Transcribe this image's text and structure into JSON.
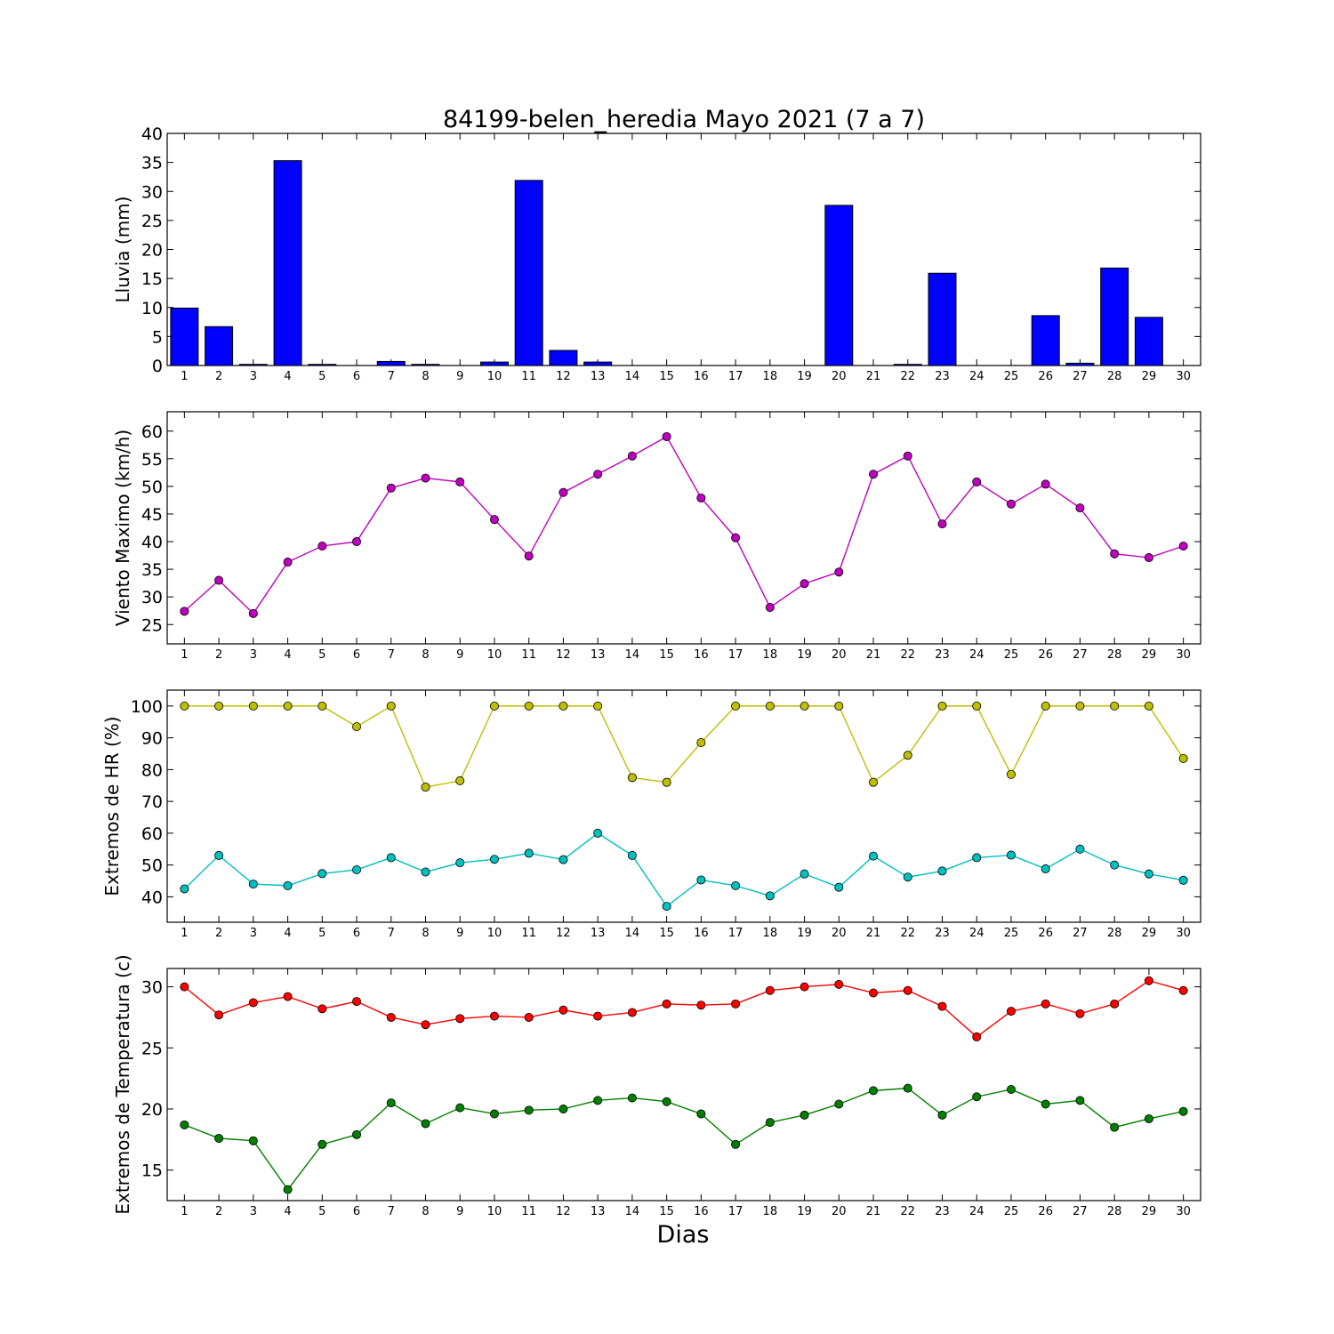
{
  "title": "84199-belen_heredia Mayo 2021  (7 a 7)",
  "xlabel": "Dias",
  "chart_data": [
    {
      "type": "bar",
      "ylabel": "Lluvia (mm)",
      "ylim": [
        0,
        40
      ],
      "yticks": [
        0,
        5,
        10,
        15,
        20,
        25,
        30,
        35,
        40
      ],
      "x": [
        1,
        2,
        3,
        4,
        5,
        6,
        7,
        8,
        9,
        10,
        11,
        12,
        13,
        14,
        15,
        16,
        17,
        18,
        19,
        20,
        21,
        22,
        23,
        24,
        25,
        26,
        27,
        28,
        29,
        30
      ],
      "series": [
        {
          "color": "#0000ff",
          "values": [
            9.9,
            6.7,
            0.2,
            35.3,
            0.2,
            0,
            0.7,
            0.2,
            0,
            0.6,
            31.9,
            2.6,
            0.6,
            0,
            0,
            0,
            0,
            0,
            0,
            27.6,
            0,
            0.2,
            15.9,
            0,
            0,
            8.6,
            0.4,
            16.8,
            8.3,
            0
          ]
        }
      ]
    },
    {
      "type": "line",
      "ylabel": "Viento Maximo (km/h)",
      "ylim": [
        21.5,
        63.5
      ],
      "yticks": [
        25,
        30,
        35,
        40,
        45,
        50,
        55,
        60
      ],
      "x": [
        1,
        2,
        3,
        4,
        5,
        6,
        7,
        8,
        9,
        10,
        11,
        12,
        13,
        14,
        15,
        16,
        17,
        18,
        19,
        20,
        21,
        22,
        23,
        24,
        25,
        26,
        27,
        28,
        29,
        30
      ],
      "series": [
        {
          "color": "#bf00bf",
          "values": [
            27.4,
            33.0,
            27.0,
            36.3,
            39.2,
            40.0,
            49.7,
            51.5,
            50.8,
            44.0,
            37.4,
            48.9,
            52.2,
            55.5,
            59.0,
            47.9,
            40.7,
            28.1,
            32.4,
            34.5,
            52.2,
            55.5,
            43.2,
            50.8,
            46.8,
            50.4,
            46.1,
            37.8,
            37.1,
            39.2
          ]
        }
      ]
    },
    {
      "type": "line",
      "ylabel": "Extremos de HR (%)",
      "ylim": [
        32,
        105
      ],
      "yticks": [
        40,
        50,
        60,
        70,
        80,
        90,
        100
      ],
      "x": [
        1,
        2,
        3,
        4,
        5,
        6,
        7,
        8,
        9,
        10,
        11,
        12,
        13,
        14,
        15,
        16,
        17,
        18,
        19,
        20,
        21,
        22,
        23,
        24,
        25,
        26,
        27,
        28,
        29,
        30
      ],
      "series": [
        {
          "color": "#bfbf00",
          "values": [
            100,
            100,
            100,
            100,
            100,
            93.5,
            100,
            74.5,
            76.5,
            100,
            100,
            100,
            100,
            77.5,
            76,
            88.5,
            100,
            100,
            100,
            100,
            76,
            84.5,
            100,
            100,
            78.5,
            100,
            100,
            100,
            100,
            83.5
          ]
        },
        {
          "color": "#00bfbf",
          "values": [
            42.5,
            53,
            44,
            43.5,
            47.3,
            48.5,
            52.3,
            47.8,
            50.7,
            51.8,
            53.7,
            51.7,
            60,
            53,
            37,
            45.3,
            43.5,
            40.3,
            47.2,
            43,
            52.8,
            46.2,
            48.1,
            52.3,
            53.1,
            48.8,
            55,
            50,
            47.2,
            45.2
          ]
        }
      ]
    },
    {
      "type": "line",
      "ylabel": "Extremos de Temperatura (c)",
      "ylim": [
        12.5,
        31.5
      ],
      "yticks": [
        15,
        20,
        25,
        30
      ],
      "x": [
        1,
        2,
        3,
        4,
        5,
        6,
        7,
        8,
        9,
        10,
        11,
        12,
        13,
        14,
        15,
        16,
        17,
        18,
        19,
        20,
        21,
        22,
        23,
        24,
        25,
        26,
        27,
        28,
        29,
        30
      ],
      "series": [
        {
          "color": "#ff0000",
          "values": [
            30.0,
            27.7,
            28.7,
            29.2,
            28.2,
            28.8,
            27.5,
            26.9,
            27.4,
            27.6,
            27.5,
            28.1,
            27.6,
            27.9,
            28.6,
            28.5,
            28.6,
            29.7,
            30.0,
            30.2,
            29.5,
            29.7,
            28.4,
            25.9,
            28.0,
            28.6,
            27.8,
            28.6,
            30.5,
            29.7
          ]
        },
        {
          "color": "#007f00",
          "values": [
            18.7,
            17.6,
            17.4,
            13.4,
            17.1,
            17.9,
            20.5,
            18.8,
            20.1,
            19.6,
            19.9,
            20.0,
            20.7,
            20.9,
            20.6,
            19.6,
            17.1,
            18.9,
            19.5,
            20.4,
            21.5,
            21.7,
            19.5,
            21.0,
            21.6,
            20.4,
            20.7,
            18.5,
            19.2,
            19.8
          ]
        }
      ]
    }
  ]
}
